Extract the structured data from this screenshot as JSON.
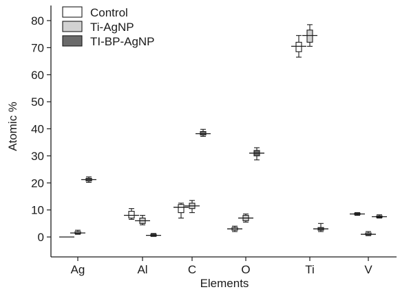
{
  "chart_data": {
    "type": "box",
    "xlabel": "Elements",
    "ylabel": "Atomic %",
    "ylim": [
      -6,
      85
    ],
    "yticks": [
      0,
      10,
      20,
      30,
      40,
      50,
      60,
      70,
      80
    ],
    "categories": [
      "Ag",
      "Al",
      "C",
      "O",
      "Ti",
      "V"
    ],
    "grid": false,
    "legend_position": "top-left",
    "series": [
      {
        "name": "Control",
        "color": "#ffffff",
        "boxes": [
          {
            "category": "Ag",
            "min": 0,
            "q1": 0,
            "median": 0,
            "q3": 0,
            "max": 0
          },
          {
            "category": "Al",
            "min": 6.5,
            "q1": 7,
            "median": 8,
            "q3": 9.5,
            "max": 10.5
          },
          {
            "category": "C",
            "min": 7,
            "q1": 9,
            "median": 11,
            "q3": 12,
            "max": 12.5
          },
          {
            "category": "O",
            "min": 2,
            "q1": 2.5,
            "median": 3,
            "q3": 3.5,
            "max": 4
          },
          {
            "category": "Ti",
            "min": 66.5,
            "q1": 68.5,
            "median": 70.5,
            "q3": 72,
            "max": 74.5
          },
          {
            "category": "V",
            "min": 8,
            "q1": 8.3,
            "median": 8.5,
            "q3": 8.8,
            "max": 9
          }
        ]
      },
      {
        "name": "Ti-AgNP",
        "color": "#d2d2d2",
        "boxes": [
          {
            "category": "Ag",
            "min": 1,
            "q1": 1.2,
            "median": 1.5,
            "q3": 2,
            "max": 2.5
          },
          {
            "category": "Al",
            "min": 4.5,
            "q1": 5,
            "median": 6,
            "q3": 7,
            "max": 8
          },
          {
            "category": "C",
            "min": 9,
            "q1": 10.5,
            "median": 11.5,
            "q3": 12.5,
            "max": 13.5
          },
          {
            "category": "O",
            "min": 5.5,
            "q1": 6,
            "median": 7,
            "q3": 8,
            "max": 8.5
          },
          {
            "category": "Ti",
            "min": 70.5,
            "q1": 72,
            "median": 74.5,
            "q3": 76.5,
            "max": 78.5
          },
          {
            "category": "V",
            "min": 0.5,
            "q1": 0.8,
            "median": 1,
            "q3": 1.5,
            "max": 2
          }
        ]
      },
      {
        "name": "TI-BP-AgNP",
        "color": "#6a6a6a",
        "boxes": [
          {
            "category": "Ag",
            "min": 20.2,
            "q1": 20.7,
            "median": 21.2,
            "q3": 21.7,
            "max": 22.2
          },
          {
            "category": "Al",
            "min": 0.2,
            "q1": 0.3,
            "median": 0.6,
            "q3": 1,
            "max": 1.3
          },
          {
            "category": "C",
            "min": 37.2,
            "q1": 37.7,
            "median": 38.2,
            "q3": 39,
            "max": 39.8
          },
          {
            "category": "O",
            "min": 28.5,
            "q1": 30,
            "median": 31,
            "q3": 32,
            "max": 33
          },
          {
            "category": "Ti",
            "min": 2,
            "q1": 2.5,
            "median": 3,
            "q3": 3.5,
            "max": 5
          },
          {
            "category": "V",
            "min": 7,
            "q1": 7.2,
            "median": 7.5,
            "q3": 7.8,
            "max": 8.2
          }
        ]
      }
    ]
  }
}
